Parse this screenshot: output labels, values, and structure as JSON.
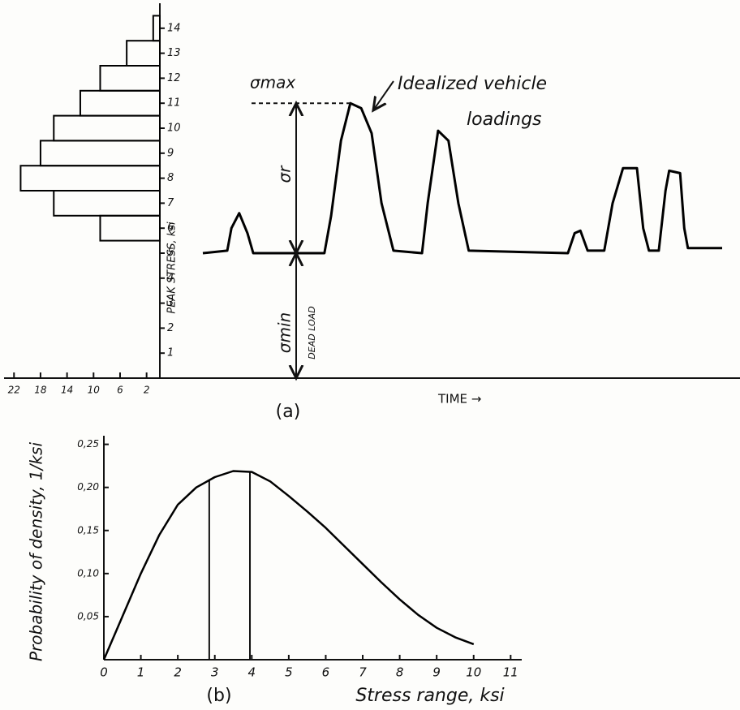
{
  "chart_data": [
    {
      "type": "histogram",
      "orientation": "horizontal",
      "bins": [
        5.5,
        6.5,
        7.5,
        8.5,
        9.5,
        10.5,
        11.5,
        12.5,
        13.5,
        14.5
      ],
      "values": [
        9,
        16,
        21,
        18,
        16,
        12,
        9,
        5,
        1
      ],
      "xlim": [
        23.5,
        0
      ],
      "xticks": [
        22,
        18,
        14,
        10,
        6,
        2
      ],
      "ylim": [
        0,
        15
      ],
      "yticks": [
        1,
        2,
        3,
        4,
        5,
        6,
        7,
        8,
        9,
        10,
        11,
        12,
        13,
        14
      ],
      "ylabel": "PEAK STRESS, ksi",
      "color": "#000000"
    },
    {
      "type": "line",
      "x": [
        0,
        4.7,
        5.5,
        7.0,
        8.6,
        9.7,
        23.4,
        24.7,
        26.6,
        28.4,
        30.5,
        32.5,
        34.4,
        36.7,
        42.2,
        43.3,
        45.3,
        47.3,
        49.2,
        51.2,
        70.3,
        71.6,
        72.7,
        74.1,
        77.3,
        78.9,
        80.9,
        83.6,
        84.8,
        85.9,
        87.8,
        89.1,
        89.8,
        91.9,
        92.7,
        93.4,
        100
      ],
      "values": [
        5.0,
        5.1,
        6.0,
        6.6,
        5.8,
        5.0,
        5.0,
        6.5,
        9.5,
        11.0,
        10.8,
        9.8,
        7.0,
        5.1,
        5.0,
        7.0,
        9.9,
        9.5,
        7.0,
        5.1,
        5.0,
        5.8,
        5.9,
        5.1,
        5.1,
        7.0,
        8.4,
        8.4,
        6.0,
        5.1,
        5.1,
        7.5,
        8.3,
        8.2,
        6.0,
        5.2,
        5.2
      ],
      "xlim": [
        0,
        100
      ],
      "ylim": [
        0,
        15
      ],
      "color": "#000000",
      "xlabel": "TIME →",
      "annotation": [
        "Idealized vehicle",
        "loadings"
      ],
      "levels": [
        5,
        11
      ],
      "level_labels": [
        "σmin",
        "σmax"
      ],
      "range_label": "σr",
      "dead_load_label": "DEAD LOAD",
      "caption": "(a)"
    },
    {
      "type": "line",
      "x": [
        0,
        0.5,
        1,
        1.5,
        2,
        2.5,
        3,
        3.5,
        4,
        4.5,
        5,
        5.5,
        6,
        6.5,
        7,
        7.5,
        8,
        8.5,
        9,
        9.5,
        10
      ],
      "values": [
        0,
        0.05,
        0.1,
        0.145,
        0.18,
        0.2,
        0.212,
        0.219,
        0.218,
        0.207,
        0.19,
        0.172,
        0.153,
        0.132,
        0.111,
        0.09,
        0.07,
        0.052,
        0.037,
        0.026,
        0.018
      ],
      "xlim": [
        0,
        11.3
      ],
      "xticks": [
        0,
        1,
        2,
        3,
        4,
        5,
        6,
        7,
        8,
        9,
        10,
        11
      ],
      "ylim": [
        0,
        0.26
      ],
      "yticks": [
        {
          "value": 0.05,
          "label": "0,05"
        },
        {
          "value": 0.1,
          "label": "0,10"
        },
        {
          "value": 0.15,
          "label": "0,15"
        },
        {
          "value": 0.2,
          "label": "0,20"
        },
        {
          "value": 0.25,
          "label": "0,25"
        }
      ],
      "vlines": [
        2.85,
        3.95
      ],
      "color": "#000000",
      "xlabel": "Stress range, ksi",
      "ylabel": "Probability of density, 1/ksi",
      "caption": "(b)"
    }
  ]
}
